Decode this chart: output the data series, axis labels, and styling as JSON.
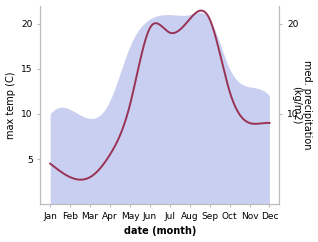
{
  "months": [
    "Jan",
    "Feb",
    "Mar",
    "Apr",
    "May",
    "Jun",
    "Jul",
    "Aug",
    "Sep",
    "Oct",
    "Nov",
    "Dec"
  ],
  "temp_line": [
    4.5,
    3.0,
    3.0,
    5.5,
    11.0,
    19.5,
    19.0,
    20.5,
    20.5,
    12.5,
    9.0,
    9.0
  ],
  "precip_fill": [
    10.0,
    10.5,
    9.5,
    11.5,
    17.5,
    20.5,
    21.0,
    21.0,
    20.5,
    15.0,
    13.0,
    12.0
  ],
  "temp_color": "#993355",
  "fill_color": "#b8c0ec",
  "fill_alpha": 0.75,
  "xlabel": "date (month)",
  "ylabel_left": "max temp (C)",
  "ylabel_right": "med. precipitation\n(kg/m2)",
  "ylim_left": [
    0,
    22
  ],
  "ylim_right": [
    0,
    22
  ],
  "yticks_left": [
    5,
    10,
    15,
    20
  ],
  "yticks_right": [
    10,
    20
  ],
  "background_color": "#ffffff",
  "spine_color": "#bbbbbb",
  "label_fontsize": 7,
  "tick_fontsize": 6.5
}
